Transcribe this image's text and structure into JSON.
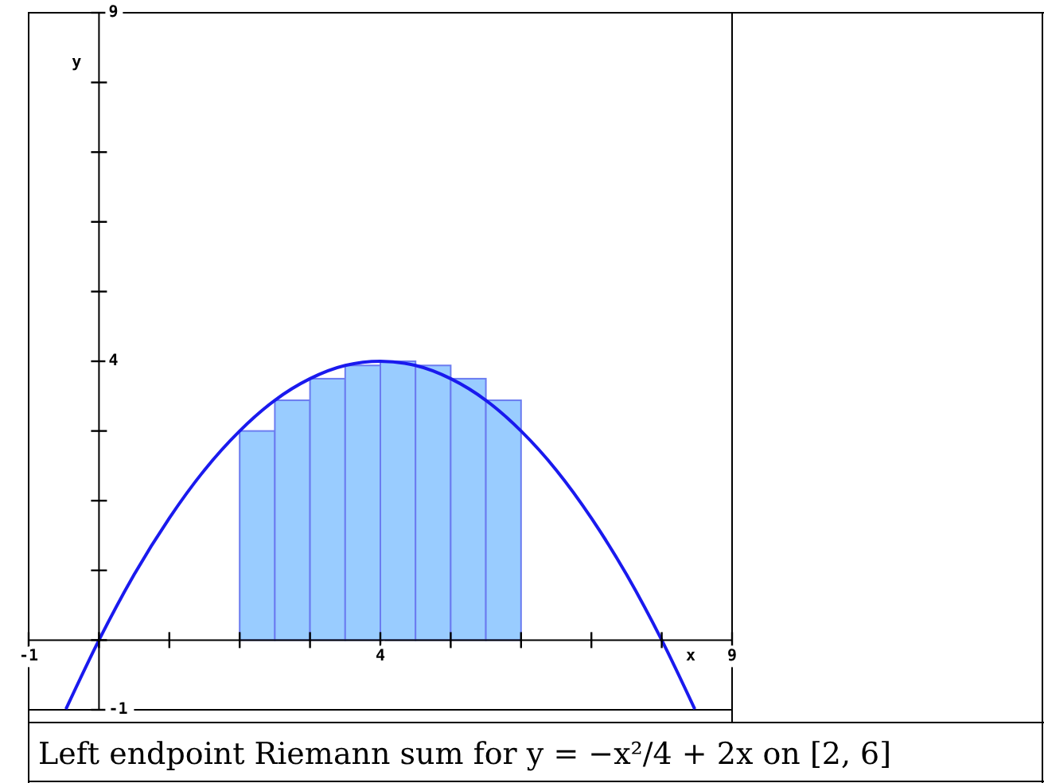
{
  "chart_data": {
    "type": "histogram",
    "bins": [
      2,
      2.5,
      3,
      3.5,
      4,
      4.5,
      5,
      5.5,
      6
    ],
    "values": [
      3,
      3.44,
      3.75,
      3.94,
      4,
      3.94,
      3.75,
      3.44
    ],
    "color": "#99ccff",
    "series": [
      {
        "type": "line",
        "color": "#1a1aee",
        "x": [
          -0.47,
          0,
          0.5,
          1,
          1.5,
          2,
          2.5,
          3,
          3.5,
          4,
          4.5,
          5,
          5.5,
          6,
          6.5,
          7,
          7.5,
          8,
          8.47
        ],
        "values": [
          -0.99,
          0,
          0.94,
          1.75,
          2.44,
          3,
          3.44,
          3.75,
          3.94,
          4,
          3.94,
          3.75,
          3.44,
          3,
          2.44,
          1.75,
          0.94,
          0,
          -0.99
        ]
      }
    ],
    "xlim": [
      -1,
      9
    ],
    "ylim": [
      -1,
      9
    ],
    "xticks": [
      -1,
      {
        "value": 0,
        "label": null
      },
      {
        "value": 1,
        "label": null
      },
      {
        "value": 2,
        "label": null
      },
      {
        "value": 3,
        "label": null
      },
      4,
      {
        "value": 5,
        "label": null
      },
      {
        "value": 6,
        "label": null
      },
      {
        "value": 7,
        "label": null
      },
      {
        "value": 8,
        "label": null
      },
      9
    ],
    "yticks": [
      -1,
      {
        "value": 0,
        "label": null
      },
      {
        "value": 1,
        "label": null
      },
      {
        "value": 2,
        "label": null
      },
      {
        "value": 3,
        "label": null
      },
      4,
      {
        "value": 5,
        "label": null
      },
      {
        "value": 6,
        "label": null
      },
      {
        "value": 7,
        "label": null
      },
      {
        "value": 8,
        "label": null
      },
      9
    ],
    "xlabel": "x",
    "ylabel": "y",
    "grid": false,
    "annotations": [
      "Left endpoint Riemann sum for y = −x²/4 + 2x on [2, 6]"
    ]
  }
}
